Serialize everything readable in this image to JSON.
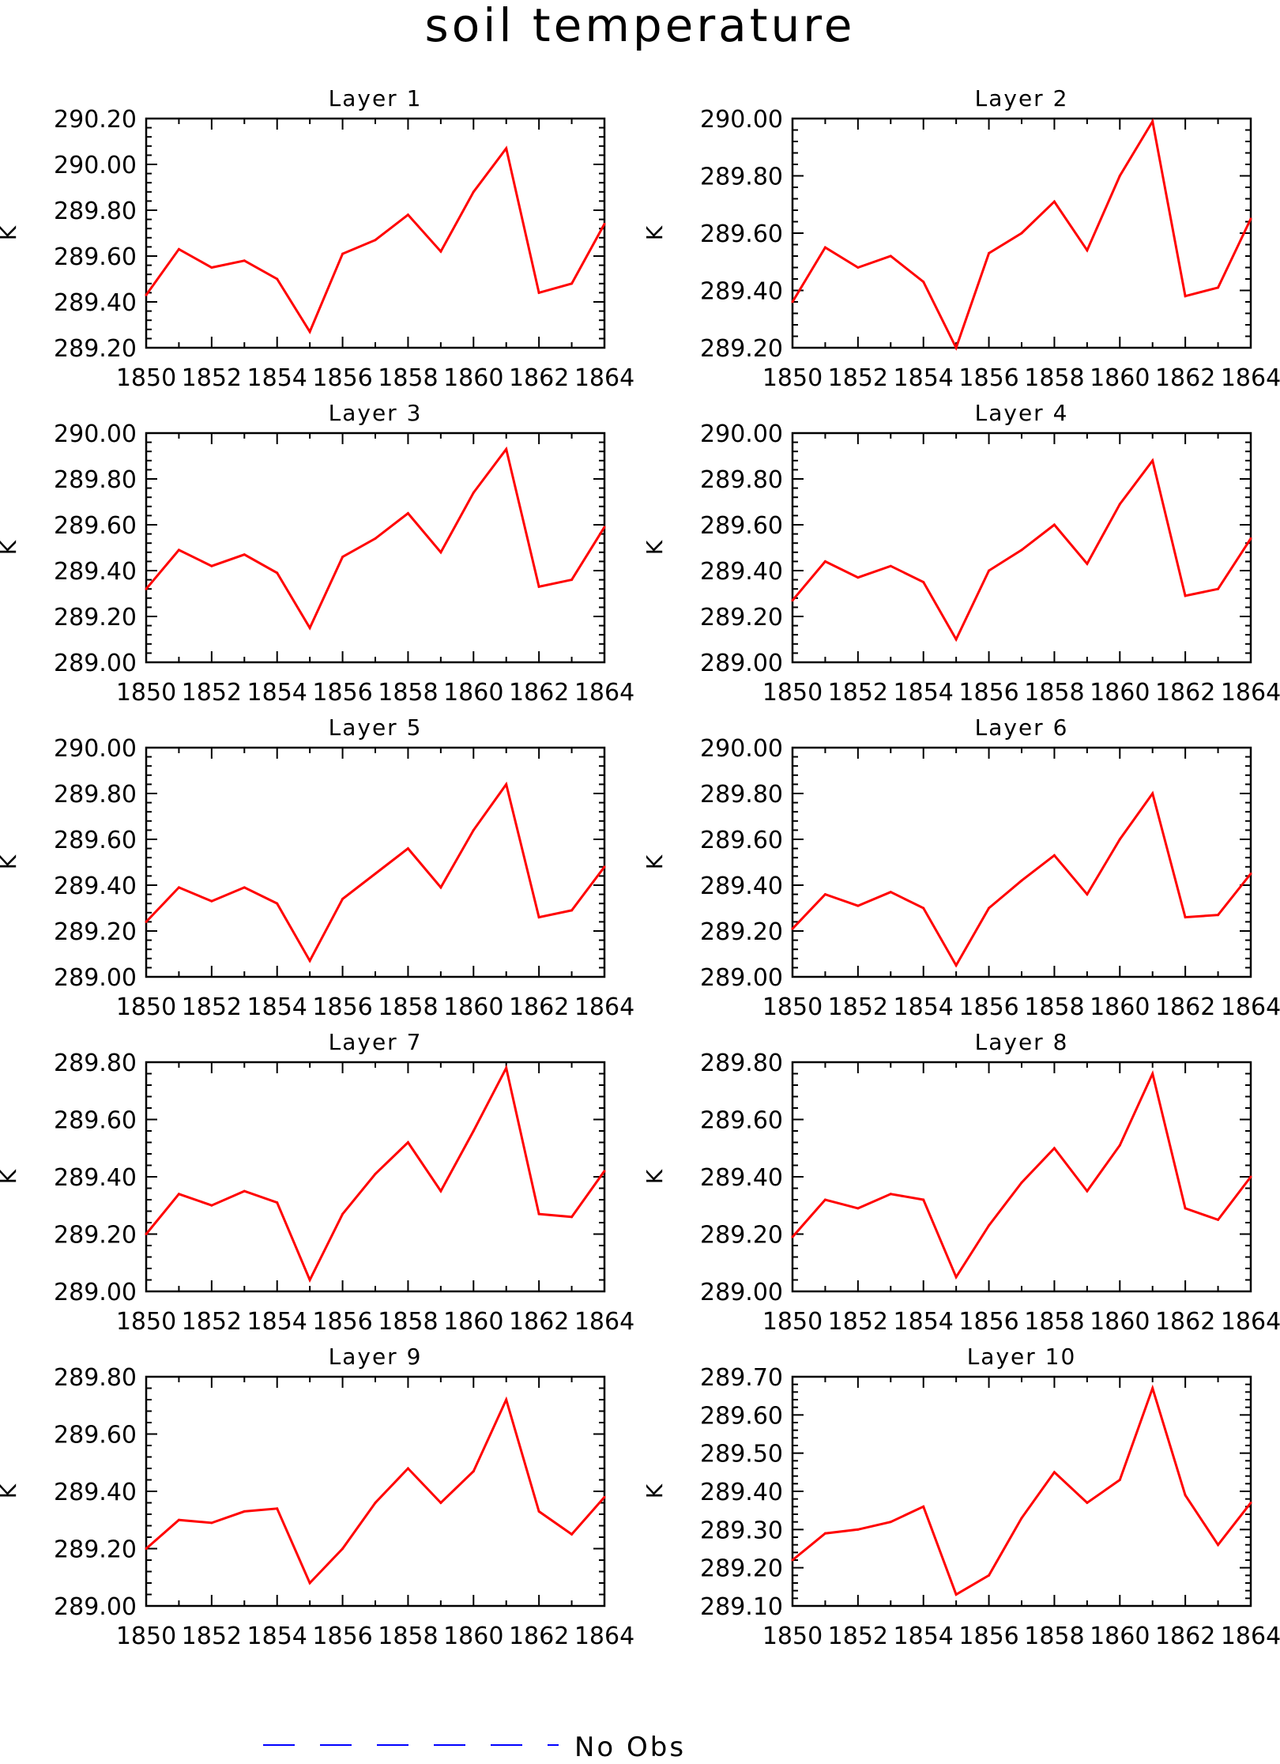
{
  "chart_data": {
    "title": "soil temperature",
    "type": "line",
    "line_color": "#ff0000",
    "x_range": [
      1850,
      1864
    ],
    "x_ticks": [
      "1850",
      "1852",
      "1854",
      "1856",
      "1858",
      "1860",
      "1862",
      "1864"
    ],
    "years": [
      1850,
      1851,
      1852,
      1853,
      1854,
      1855,
      1856,
      1857,
      1858,
      1859,
      1860,
      1861,
      1862,
      1863,
      1864
    ],
    "legend": {
      "label": "No Obs",
      "color": "#0000ff",
      "style": "dashed"
    },
    "panels": [
      {
        "title": "Layer 1",
        "ylabel": "K",
        "ylim": [
          289.2,
          290.2
        ],
        "yticks": [
          "289.20",
          "289.40",
          "289.60",
          "289.80",
          "290.00",
          "290.20"
        ],
        "values": [
          289.43,
          289.63,
          289.55,
          289.58,
          289.5,
          289.27,
          289.61,
          289.67,
          289.78,
          289.62,
          289.88,
          290.07,
          289.44,
          289.48,
          289.74
        ]
      },
      {
        "title": "Layer 2",
        "ylabel": "K",
        "ylim": [
          289.2,
          290.0
        ],
        "yticks": [
          "289.20",
          "289.40",
          "289.60",
          "289.80",
          "290.00"
        ],
        "values": [
          289.36,
          289.55,
          289.48,
          289.52,
          289.43,
          289.2,
          289.53,
          289.6,
          289.71,
          289.54,
          289.8,
          289.99,
          289.38,
          289.41,
          289.65
        ]
      },
      {
        "title": "Layer 3",
        "ylabel": "K",
        "ylim": [
          289.0,
          290.0
        ],
        "yticks": [
          "289.00",
          "289.20",
          "289.40",
          "289.60",
          "289.80",
          "290.00"
        ],
        "values": [
          289.32,
          289.49,
          289.42,
          289.47,
          289.39,
          289.15,
          289.46,
          289.54,
          289.65,
          289.48,
          289.74,
          289.93,
          289.33,
          289.36,
          289.59
        ]
      },
      {
        "title": "Layer 4",
        "ylabel": "K",
        "ylim": [
          289.0,
          290.0
        ],
        "yticks": [
          "289.00",
          "289.20",
          "289.40",
          "289.60",
          "289.80",
          "290.00"
        ],
        "values": [
          289.27,
          289.44,
          289.37,
          289.42,
          289.35,
          289.1,
          289.4,
          289.49,
          289.6,
          289.43,
          289.69,
          289.88,
          289.29,
          289.32,
          289.54
        ]
      },
      {
        "title": "Layer 5",
        "ylabel": "K",
        "ylim": [
          289.0,
          290.0
        ],
        "yticks": [
          "289.00",
          "289.20",
          "289.40",
          "289.60",
          "289.80",
          "290.00"
        ],
        "values": [
          289.24,
          289.39,
          289.33,
          289.39,
          289.32,
          289.07,
          289.34,
          289.45,
          289.56,
          289.39,
          289.64,
          289.84,
          289.26,
          289.29,
          289.48
        ]
      },
      {
        "title": "Layer 6",
        "ylabel": "K",
        "ylim": [
          289.0,
          290.0
        ],
        "yticks": [
          "289.00",
          "289.20",
          "289.40",
          "289.60",
          "289.80",
          "290.00"
        ],
        "values": [
          289.21,
          289.36,
          289.31,
          289.37,
          289.3,
          289.05,
          289.3,
          289.42,
          289.53,
          289.36,
          289.6,
          289.8,
          289.26,
          289.27,
          289.45
        ]
      },
      {
        "title": "Layer 7",
        "ylabel": "K",
        "ylim": [
          289.0,
          289.8
        ],
        "yticks": [
          "289.00",
          "289.20",
          "289.40",
          "289.60",
          "289.80"
        ],
        "values": [
          289.2,
          289.34,
          289.3,
          289.35,
          289.31,
          289.04,
          289.27,
          289.41,
          289.52,
          289.35,
          289.56,
          289.78,
          289.27,
          289.26,
          289.42
        ]
      },
      {
        "title": "Layer 8",
        "ylabel": "K",
        "ylim": [
          289.0,
          289.8
        ],
        "yticks": [
          "289.00",
          "289.20",
          "289.40",
          "289.60",
          "289.80"
        ],
        "values": [
          289.19,
          289.32,
          289.29,
          289.34,
          289.32,
          289.05,
          289.23,
          289.38,
          289.5,
          289.35,
          289.51,
          289.76,
          289.29,
          289.25,
          289.4
        ]
      },
      {
        "title": "Layer 9",
        "ylabel": "K",
        "ylim": [
          289.0,
          289.8
        ],
        "yticks": [
          "289.00",
          "289.20",
          "289.40",
          "289.60",
          "289.80"
        ],
        "values": [
          289.2,
          289.3,
          289.29,
          289.33,
          289.34,
          289.08,
          289.2,
          289.36,
          289.48,
          289.36,
          289.47,
          289.72,
          289.33,
          289.25,
          289.38
        ]
      },
      {
        "title": "Layer 10",
        "ylabel": "K",
        "ylim": [
          289.1,
          289.7
        ],
        "yticks": [
          "289.10",
          "289.20",
          "289.30",
          "289.40",
          "289.50",
          "289.60",
          "289.70"
        ],
        "values": [
          289.22,
          289.29,
          289.3,
          289.32,
          289.36,
          289.13,
          289.18,
          289.33,
          289.45,
          289.37,
          289.43,
          289.67,
          289.39,
          289.26,
          289.37
        ]
      }
    ]
  }
}
